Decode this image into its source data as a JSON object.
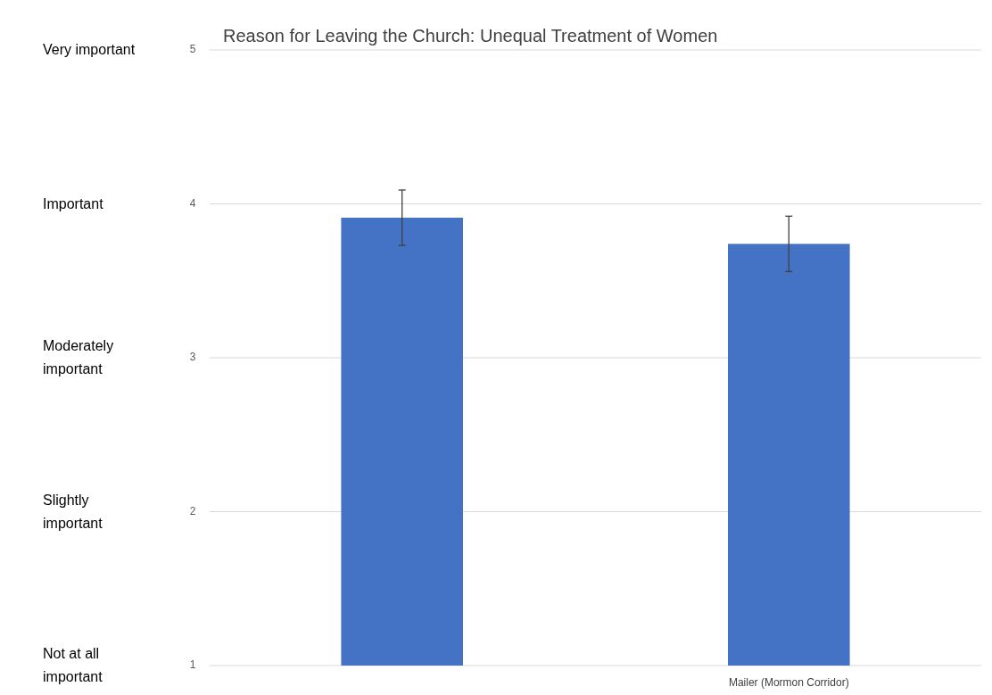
{
  "chart_data": {
    "type": "bar",
    "title": "Reason for Leaving the Church: Unequal Treatment of Women",
    "categories": [
      null,
      "Mailer (Mormon Corridor)"
    ],
    "values": [
      3.91,
      3.74
    ],
    "errors": [
      0.18,
      0.18
    ],
    "color": "#4472c4",
    "ylim": [
      1,
      5
    ],
    "yticks": [
      1,
      2,
      3,
      4,
      5
    ],
    "annotations": [
      "Very important",
      "Important",
      "Moderately important",
      "Slightly important",
      "Not at all important"
    ],
    "grid": "y"
  }
}
